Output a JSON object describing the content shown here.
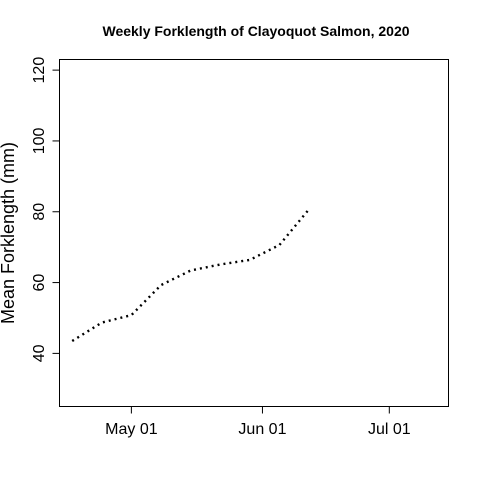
{
  "chart_data": {
    "type": "line",
    "title": "Weekly Forklength of Clayoquot Salmon, 2020",
    "xlabel": "",
    "ylabel": "Mean Forklength (mm)",
    "xlim": [
      "2020-04-14",
      "2020-07-15"
    ],
    "ylim": [
      25,
      123
    ],
    "x_ticks": [
      {
        "value": "2020-05-01",
        "label": "May 01"
      },
      {
        "value": "2020-06-01",
        "label": "Jun 01"
      },
      {
        "value": "2020-07-01",
        "label": "Jul 01"
      }
    ],
    "y_ticks": [
      {
        "value": 40,
        "label": "40"
      },
      {
        "value": 60,
        "label": "60"
      },
      {
        "value": 80,
        "label": "80"
      },
      {
        "value": 100,
        "label": "100"
      },
      {
        "value": 120,
        "label": "120"
      }
    ],
    "line_style": "dotted",
    "grid": false,
    "series": [
      {
        "x": [
          "2020-04-17",
          "2020-04-24",
          "2020-05-01",
          "2020-05-08",
          "2020-05-15",
          "2020-05-22",
          "2020-05-29",
          "2020-06-05",
          "2020-06-12"
        ],
        "y": [
          43.5,
          48.7,
          50.8,
          59.3,
          63.4,
          65.1,
          66.4,
          70.6,
          80.7
        ]
      }
    ]
  }
}
